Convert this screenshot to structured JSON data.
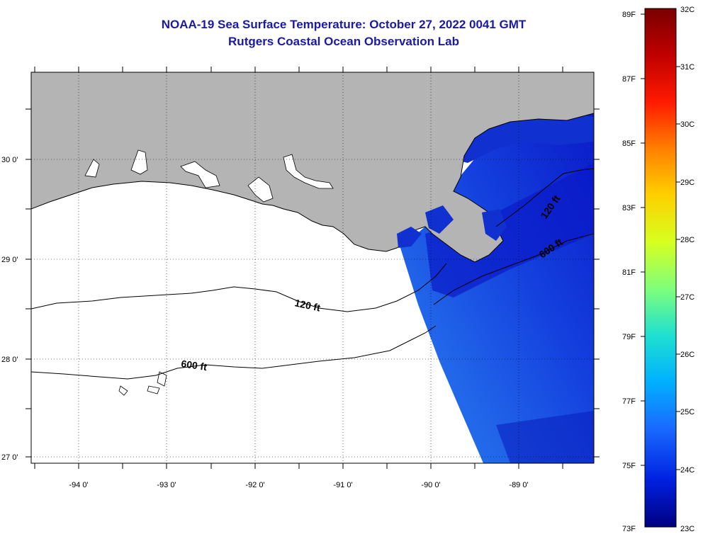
{
  "title": "NOAA-19 Sea Surface Temperature:  October 27, 2022 0041 GMT",
  "subtitle": "Rutgers Coastal Ocean Observation Lab",
  "longitude_labels": [
    "-94 0'",
    "-93 0'",
    "-92 0'",
    "-91 0'",
    "-90 0'",
    "-89 0'"
  ],
  "latitude_labels": [
    "30 0'",
    "29 0'",
    "28 0'",
    "27 0'"
  ],
  "contour_labels": [
    {
      "text": "120 ft",
      "location": "western shelf"
    },
    {
      "text": "600 ft",
      "location": "western slope"
    },
    {
      "text": "120 ft",
      "location": "east of delta"
    },
    {
      "text": "600 ft",
      "location": "east of delta"
    }
  ],
  "colorbar": {
    "fahrenheit_labels": [
      "89F",
      "87F",
      "85F",
      "83F",
      "81F",
      "79F",
      "77F",
      "75F",
      "73F"
    ],
    "celsius_labels": [
      "32C",
      "31C",
      "30C",
      "29C",
      "28C",
      "27C",
      "26C",
      "25C",
      "24C",
      "23C"
    ],
    "colors_top_to_bottom": [
      "#7a0000",
      "#c00000",
      "#ff1a00",
      "#ff7f00",
      "#ffd000",
      "#d7ff1f",
      "#7fff7a",
      "#1fe0d0",
      "#00b0ff",
      "#1a6aff",
      "#0020e0",
      "#000080"
    ]
  },
  "colors": {
    "land": "#b4b4b4",
    "water_no_data": "#ffffff",
    "sst_dark": "#0a1ac8",
    "sst_mid": "#1848e6",
    "sst_light": "#2a7cf0",
    "title": "#1a1aa6"
  },
  "icons": {
    "map": "sea-surface-temperature-map"
  }
}
